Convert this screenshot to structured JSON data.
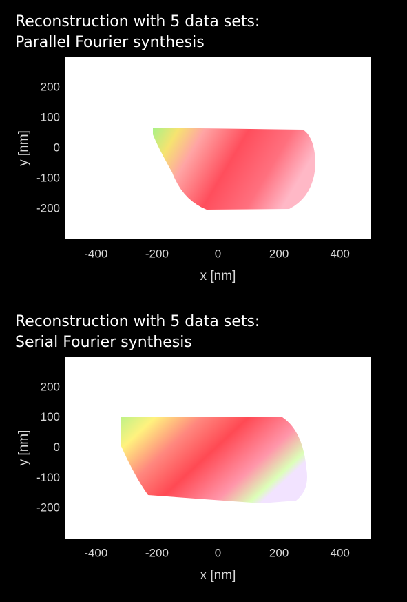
{
  "chart_data": [
    {
      "type": "image",
      "title": "Reconstruction with 5 data sets:",
      "subtitle": "Parallel Fourier synthesis",
      "x_label": "x [nm]",
      "y_label": "y [nm]",
      "xlim": [
        -500,
        500
      ],
      "xticks": [
        -400,
        -200,
        0,
        200,
        400
      ],
      "ylim": [
        -300,
        300
      ],
      "yticks": [
        200,
        100,
        0,
        -100,
        -200
      ]
    },
    {
      "type": "image",
      "title": "Reconstruction with 5 data sets:",
      "subtitle": "Serial Fourier synthesis",
      "x_label": "x [nm]",
      "y_label": "y [nm]",
      "xlim": [
        -500,
        500
      ],
      "xticks": [
        -400,
        -200,
        0,
        200,
        400
      ],
      "ylim": [
        -300,
        300
      ],
      "yticks": [
        200,
        100,
        0,
        -100,
        -200
      ]
    }
  ]
}
